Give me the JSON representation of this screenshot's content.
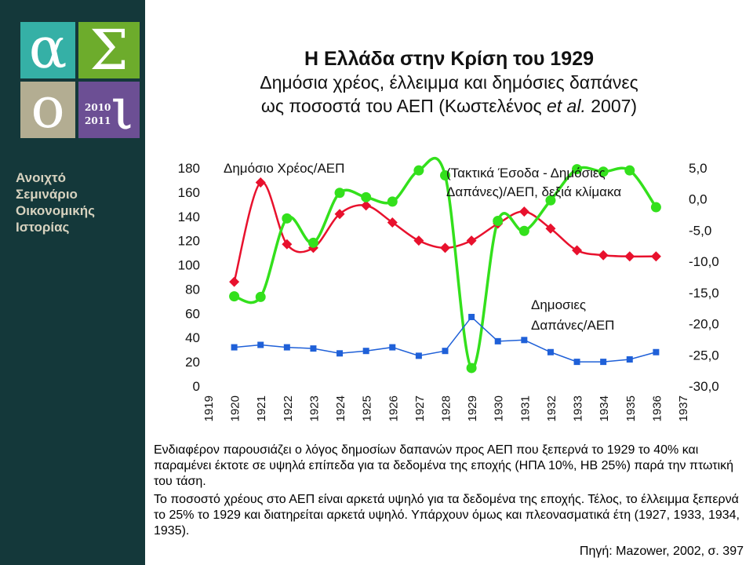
{
  "logo": {
    "letters": [
      "α",
      "Σ",
      "ο",
      "ι"
    ],
    "year_start": "2010",
    "year_end": "2011"
  },
  "sidebar": {
    "lines": [
      "Ανοιχτό",
      "Σεμινάριο",
      "Οικονομικής",
      "Ιστορίας"
    ]
  },
  "header": {
    "title": "Η Ελλάδα στην Κρίση του 1929",
    "subtitle_line1": "Δημόσια χρέος, έλλειμμα και δημόσιες δαπάνες",
    "subtitle_line2_prefix": "ως ποσοστά του ΑΕΠ (Κωστελένος ",
    "subtitle_line2_italic": "et al.",
    "subtitle_line2_suffix": " 2007)"
  },
  "chart_data": {
    "type": "line",
    "x": [
      "1919",
      "1920",
      "1921",
      "1922",
      "1923",
      "1924",
      "1925",
      "1926",
      "1927",
      "1928",
      "1929",
      "1930",
      "1931",
      "1932",
      "1933",
      "1934",
      "1935",
      "1936",
      "1937"
    ],
    "y_left": {
      "ticks": [
        "180",
        "160",
        "140",
        "120",
        "100",
        "80",
        "60",
        "40",
        "20",
        "0"
      ],
      "range": [
        0,
        180
      ]
    },
    "y_right": {
      "ticks": [
        "5,0",
        "0,0",
        "-5,0",
        "-10,0",
        "-15,0",
        "-20,0",
        "-25,0",
        "-30,0"
      ],
      "range": [
        -30,
        5
      ]
    },
    "annotations": {
      "debt": "Δημόσιο Χρέος/ΑΕΠ",
      "balance_line1": "(Τακτικά Έσοδα - Δημόσιες",
      "balance_line2": "Δαπάνες)/ΑΕΠ, δεξιά κλίμακα",
      "spending_line1": "Δημοσιες",
      "spending_line2": "Δαπάνες/ΑΕΠ"
    },
    "series": [
      {
        "key": "debt",
        "axis": "left",
        "color": "#e8112d",
        "values": [
          null,
          86,
          168,
          117,
          114,
          142,
          149,
          135,
          120,
          114,
          120,
          134,
          144,
          130,
          112,
          108,
          107,
          107,
          null
        ]
      },
      {
        "key": "balance",
        "axis": "right",
        "color": "#33e01c",
        "values": [
          null,
          -15.6,
          -15.7,
          -3.1,
          -7.0,
          1.0,
          0.3,
          -0.4,
          4.6,
          3.8,
          -27.1,
          -3.5,
          -5.1,
          -0.2,
          4.8,
          4.4,
          4.6,
          -1.3,
          null
        ]
      },
      {
        "key": "spending",
        "axis": "left",
        "color": "#1f60d8",
        "values": [
          null,
          32,
          34,
          32,
          31,
          27,
          29,
          32,
          25,
          29,
          57,
          37,
          38,
          28,
          20,
          20,
          22,
          28,
          null
        ]
      }
    ]
  },
  "notes": {
    "paragraph1": "Ενδιαφέρον παρουσιάζει ο λόγος δημοσίων δαπανών προς ΑΕΠ που ξεπερνά το 1929 το 40% και παραμένει έκτοτε σε υψηλά επίπεδα για τα δεδομένα της εποχής (ΗΠΑ 10%, ΗΒ 25%) παρά την πτωτική του τάση.",
    "paragraph2": "Το ποσοστό χρέους στο ΑΕΠ είναι αρκετά υψηλό για τα δεδομένα της εποχής. Τέλος, το έλλειμμα ξεπερνά το 25% το 1929 και διατηρείται αρκετά υψηλό. Υπάρχουν όμως και πλεονασματικά έτη (1927, 1933, 1934, 1935).",
    "source": "Πηγή: Mazower, 2002, σ. 397"
  }
}
